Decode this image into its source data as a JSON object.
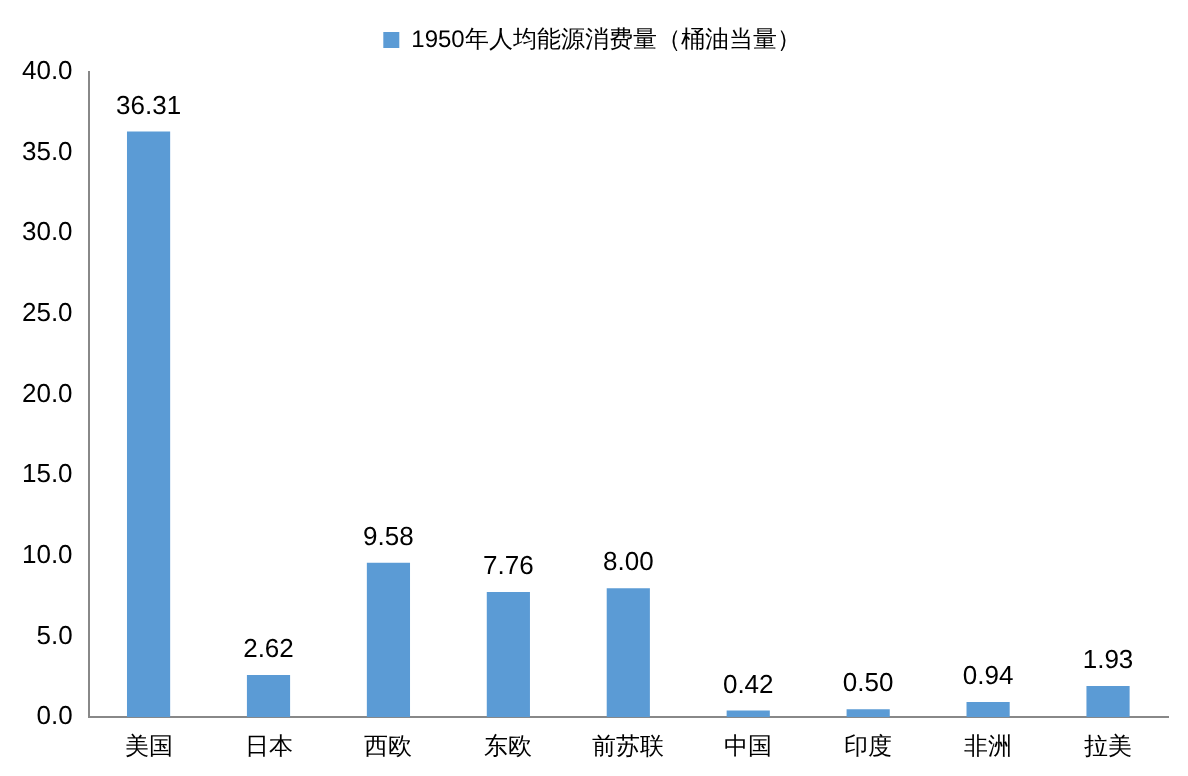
{
  "chart_data": {
    "type": "bar",
    "categories": [
      "美国",
      "日本",
      "西欧",
      "东欧",
      "前苏联",
      "中国",
      "印度",
      "非洲",
      "拉美"
    ],
    "series": [
      {
        "name": "1950年人均能源消费量（桶油当量）",
        "color": "#5b9bd5",
        "values": [
          36.31,
          2.62,
          9.58,
          7.76,
          8.0,
          0.42,
          0.5,
          0.94,
          1.93
        ]
      }
    ],
    "value_labels": [
      "36.31",
      "2.62",
      "9.58",
      "7.76",
      "8.00",
      "0.42",
      "0.50",
      "0.94",
      "1.93"
    ],
    "ylim": [
      0,
      40
    ],
    "yticks": [
      {
        "value": 0,
        "label": "0.0"
      },
      {
        "value": 5,
        "label": "5.0"
      },
      {
        "value": 10,
        "label": "10.0"
      },
      {
        "value": 15,
        "label": "15.0"
      },
      {
        "value": 20,
        "label": "20.0"
      },
      {
        "value": 25,
        "label": "25.0"
      },
      {
        "value": 30,
        "label": "30.0"
      },
      {
        "value": 35,
        "label": "35.0"
      },
      {
        "value": 40,
        "label": "40.0"
      }
    ],
    "grid": false,
    "legend": "top"
  }
}
